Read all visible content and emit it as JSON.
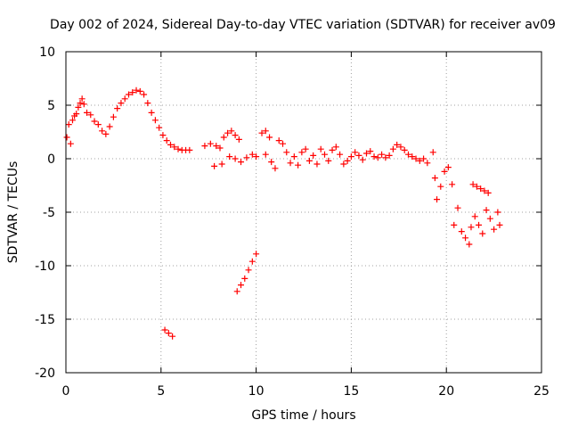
{
  "chart_data": {
    "type": "scatter",
    "title": "Day 002 of 2024, Sidereal Day-to-day VTEC variation (SDTVAR) for receiver av09",
    "xlabel": "GPS time / hours",
    "ylabel": "SDTVAR / TECUs",
    "xlim": [
      0,
      25
    ],
    "ylim": [
      -20,
      10
    ],
    "xticks": [
      "0",
      "5",
      "10",
      "15",
      "20",
      "25"
    ],
    "yticks": [
      "-20",
      "-15",
      "-10",
      "-5",
      "0",
      "5",
      "10"
    ],
    "grid": true,
    "marker": "+",
    "color": "#ff0000",
    "series": [
      {
        "name": "av09",
        "points": [
          [
            0.05,
            2.0
          ],
          [
            0.15,
            3.2
          ],
          [
            0.25,
            1.4
          ],
          [
            0.35,
            3.6
          ],
          [
            0.45,
            4.0
          ],
          [
            0.55,
            4.2
          ],
          [
            0.65,
            4.8
          ],
          [
            0.75,
            5.2
          ],
          [
            0.85,
            5.6
          ],
          [
            0.95,
            5.1
          ],
          [
            1.1,
            4.3
          ],
          [
            1.3,
            4.1
          ],
          [
            1.5,
            3.5
          ],
          [
            1.7,
            3.2
          ],
          [
            1.9,
            2.6
          ],
          [
            2.1,
            2.3
          ],
          [
            2.3,
            3.0
          ],
          [
            2.5,
            3.9
          ],
          [
            2.7,
            4.7
          ],
          [
            2.9,
            5.2
          ],
          [
            3.1,
            5.6
          ],
          [
            3.3,
            6.0
          ],
          [
            3.5,
            6.2
          ],
          [
            3.7,
            6.4
          ],
          [
            3.9,
            6.3
          ],
          [
            4.1,
            6.0
          ],
          [
            4.3,
            5.2
          ],
          [
            4.5,
            4.3
          ],
          [
            4.7,
            3.6
          ],
          [
            4.9,
            2.9
          ],
          [
            5.1,
            2.2
          ],
          [
            5.3,
            1.7
          ],
          [
            5.5,
            1.3
          ],
          [
            5.7,
            1.1
          ],
          [
            5.9,
            0.9
          ],
          [
            6.1,
            0.8
          ],
          [
            6.3,
            0.8
          ],
          [
            6.5,
            0.8
          ],
          [
            5.2,
            -16.0
          ],
          [
            5.4,
            -16.3
          ],
          [
            5.6,
            -16.6
          ],
          [
            7.3,
            1.2
          ],
          [
            7.6,
            1.4
          ],
          [
            7.9,
            1.2
          ],
          [
            8.1,
            1.0
          ],
          [
            8.3,
            2.0
          ],
          [
            8.5,
            2.4
          ],
          [
            8.7,
            2.6
          ],
          [
            8.9,
            2.2
          ],
          [
            9.1,
            1.8
          ],
          [
            7.8,
            -0.7
          ],
          [
            8.2,
            -0.5
          ],
          [
            8.6,
            0.2
          ],
          [
            8.9,
            0.0
          ],
          [
            9.2,
            -0.3
          ],
          [
            9.5,
            0.1
          ],
          [
            9.8,
            0.4
          ],
          [
            10.0,
            0.2
          ],
          [
            9.0,
            -12.4
          ],
          [
            9.2,
            -11.8
          ],
          [
            9.4,
            -11.2
          ],
          [
            9.6,
            -10.4
          ],
          [
            9.8,
            -9.6
          ],
          [
            10.0,
            -8.9
          ],
          [
            10.3,
            2.4
          ],
          [
            10.5,
            2.6
          ],
          [
            10.7,
            2.0
          ],
          [
            10.5,
            0.4
          ],
          [
            10.8,
            -0.3
          ],
          [
            11.0,
            -0.9
          ],
          [
            11.2,
            1.7
          ],
          [
            11.4,
            1.4
          ],
          [
            11.6,
            0.6
          ],
          [
            11.8,
            -0.4
          ],
          [
            12.0,
            0.2
          ],
          [
            12.2,
            -0.6
          ],
          [
            12.4,
            0.6
          ],
          [
            12.6,
            0.9
          ],
          [
            12.8,
            -0.2
          ],
          [
            13.0,
            0.3
          ],
          [
            13.2,
            -0.5
          ],
          [
            13.4,
            0.9
          ],
          [
            13.6,
            0.4
          ],
          [
            13.8,
            -0.2
          ],
          [
            14.0,
            0.8
          ],
          [
            14.2,
            1.1
          ],
          [
            14.4,
            0.4
          ],
          [
            14.6,
            -0.5
          ],
          [
            14.8,
            -0.2
          ],
          [
            15.0,
            0.2
          ],
          [
            15.2,
            0.6
          ],
          [
            15.4,
            0.3
          ],
          [
            15.6,
            -0.1
          ],
          [
            15.8,
            0.5
          ],
          [
            16.0,
            0.7
          ],
          [
            16.2,
            0.2
          ],
          [
            16.4,
            0.1
          ],
          [
            16.6,
            0.4
          ],
          [
            16.8,
            0.1
          ],
          [
            17.0,
            0.3
          ],
          [
            17.2,
            0.9
          ],
          [
            17.4,
            1.3
          ],
          [
            17.6,
            1.1
          ],
          [
            17.8,
            0.8
          ],
          [
            18.0,
            0.4
          ],
          [
            18.2,
            0.2
          ],
          [
            18.4,
            0.0
          ],
          [
            18.6,
            -0.2
          ],
          [
            18.8,
            0.0
          ],
          [
            19.0,
            -0.4
          ],
          [
            19.3,
            0.6
          ],
          [
            19.4,
            -1.8
          ],
          [
            19.5,
            -3.8
          ],
          [
            19.7,
            -2.6
          ],
          [
            19.9,
            -1.2
          ],
          [
            20.1,
            -0.8
          ],
          [
            20.3,
            -2.4
          ],
          [
            20.4,
            -6.2
          ],
          [
            20.6,
            -4.6
          ],
          [
            20.8,
            -6.8
          ],
          [
            21.0,
            -7.4
          ],
          [
            21.2,
            -8.0
          ],
          [
            21.3,
            -6.4
          ],
          [
            21.5,
            -5.4
          ],
          [
            21.7,
            -6.2
          ],
          [
            21.9,
            -7.0
          ],
          [
            22.1,
            -4.8
          ],
          [
            22.3,
            -5.6
          ],
          [
            22.5,
            -6.6
          ],
          [
            22.7,
            -5.0
          ],
          [
            22.8,
            -6.2
          ],
          [
            21.4,
            -2.4
          ],
          [
            21.6,
            -2.6
          ],
          [
            21.8,
            -2.8
          ],
          [
            22.0,
            -3.0
          ],
          [
            22.2,
            -3.2
          ]
        ]
      }
    ]
  }
}
